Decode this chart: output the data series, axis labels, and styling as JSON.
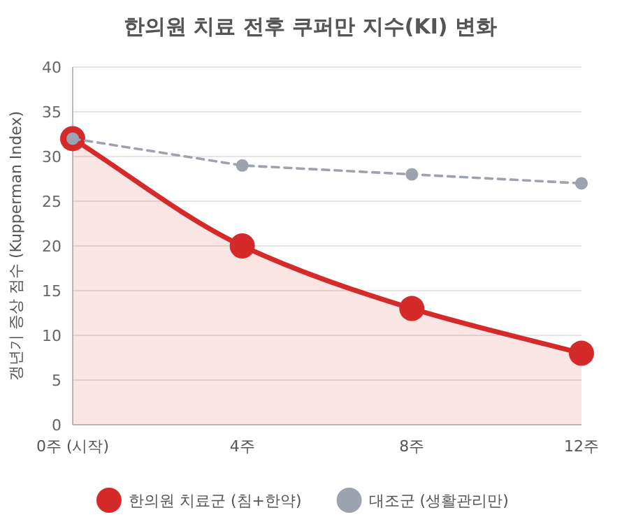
{
  "chart_data": {
    "type": "line",
    "title": "한의원 치료 전후 쿠퍼만 지수(KI) 변화",
    "ylabel": "갱년기 증상 점수 (Kupperman Index)",
    "categories": [
      "0주 (시작)",
      "4주",
      "8주",
      "12주"
    ],
    "series": [
      {
        "name": "한의원 치료군 (침+한약)",
        "type": "area",
        "color": "#d42a2a",
        "values": [
          32,
          20,
          13,
          8
        ],
        "line_style": "solid",
        "marker": "circle"
      },
      {
        "name": "대조군 (생활관리만)",
        "type": "line",
        "color": "#9ca3af",
        "values": [
          32,
          29,
          28,
          27
        ],
        "line_style": "dashed",
        "marker": "circle"
      }
    ],
    "ylim": [
      0,
      40
    ],
    "yticks": [
      0,
      5,
      10,
      15,
      20,
      25,
      30,
      35,
      40
    ],
    "grid": "y",
    "legend": "bottom"
  }
}
